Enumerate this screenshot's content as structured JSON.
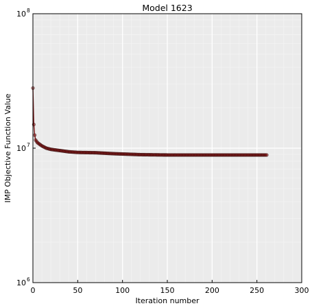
{
  "chart_data": {
    "type": "line",
    "title": "Model 1623",
    "xlabel": "Iteration number",
    "ylabel": "IMP Objective Function Value",
    "xlim": [
      0,
      300
    ],
    "ylim": [
      1000000,
      100000000
    ],
    "yscale": "log",
    "x_ticks": [
      0,
      50,
      100,
      150,
      200,
      250,
      300
    ],
    "x_tick_labels": [
      "0",
      "50",
      "100",
      "150",
      "200",
      "250",
      "300"
    ],
    "y_ticks": [
      1000000,
      10000000,
      100000000
    ],
    "y_tick_labels": [
      [
        "10",
        "6"
      ],
      [
        "10",
        "7"
      ],
      [
        "10",
        "8"
      ]
    ],
    "grid": true,
    "background": "#ebebeb",
    "line_color": "#7a1414",
    "marker_edge_color": "#2a0a0a",
    "series": [
      {
        "anchors": [
          [
            0,
            28000000
          ],
          [
            1,
            15000000
          ],
          [
            2,
            12500000
          ],
          [
            3,
            11500000
          ],
          [
            5,
            11000000
          ],
          [
            10,
            10400000
          ],
          [
            15,
            10000000
          ],
          [
            20,
            9800000
          ],
          [
            30,
            9600000
          ],
          [
            40,
            9400000
          ],
          [
            50,
            9300000
          ],
          [
            70,
            9250000
          ],
          [
            90,
            9100000
          ],
          [
            110,
            9000000
          ],
          [
            120,
            8950000
          ],
          [
            150,
            8900000
          ],
          [
            200,
            8900000
          ],
          [
            261,
            8900000
          ]
        ]
      }
    ]
  }
}
